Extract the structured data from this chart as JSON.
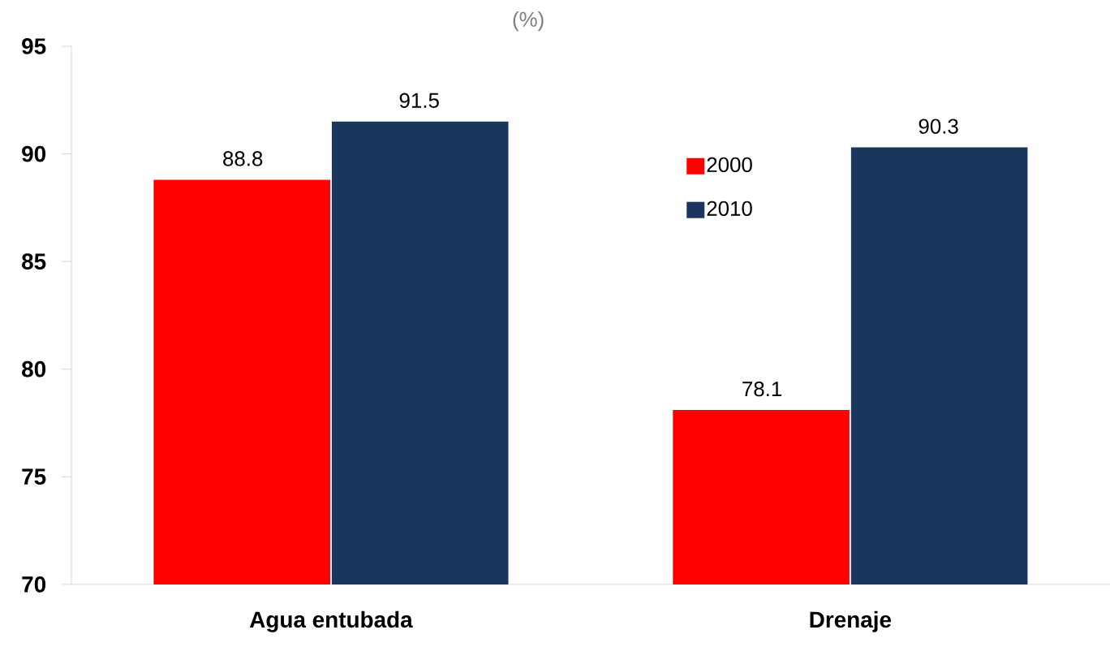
{
  "chart_data": {
    "type": "bar",
    "subtitle": "(%)",
    "categories": [
      "Agua entubada",
      "Drenaje"
    ],
    "series": [
      {
        "name": "2000",
        "color": "#ff0000",
        "values": [
          88.8,
          78.1
        ]
      },
      {
        "name": "2010",
        "color": "#1b365d",
        "values": [
          91.5,
          90.3
        ]
      }
    ],
    "ylim": [
      70,
      95
    ],
    "yticks": [
      70,
      75,
      80,
      85,
      90,
      95
    ],
    "grid": false,
    "legend": "right",
    "data_labels": true
  }
}
